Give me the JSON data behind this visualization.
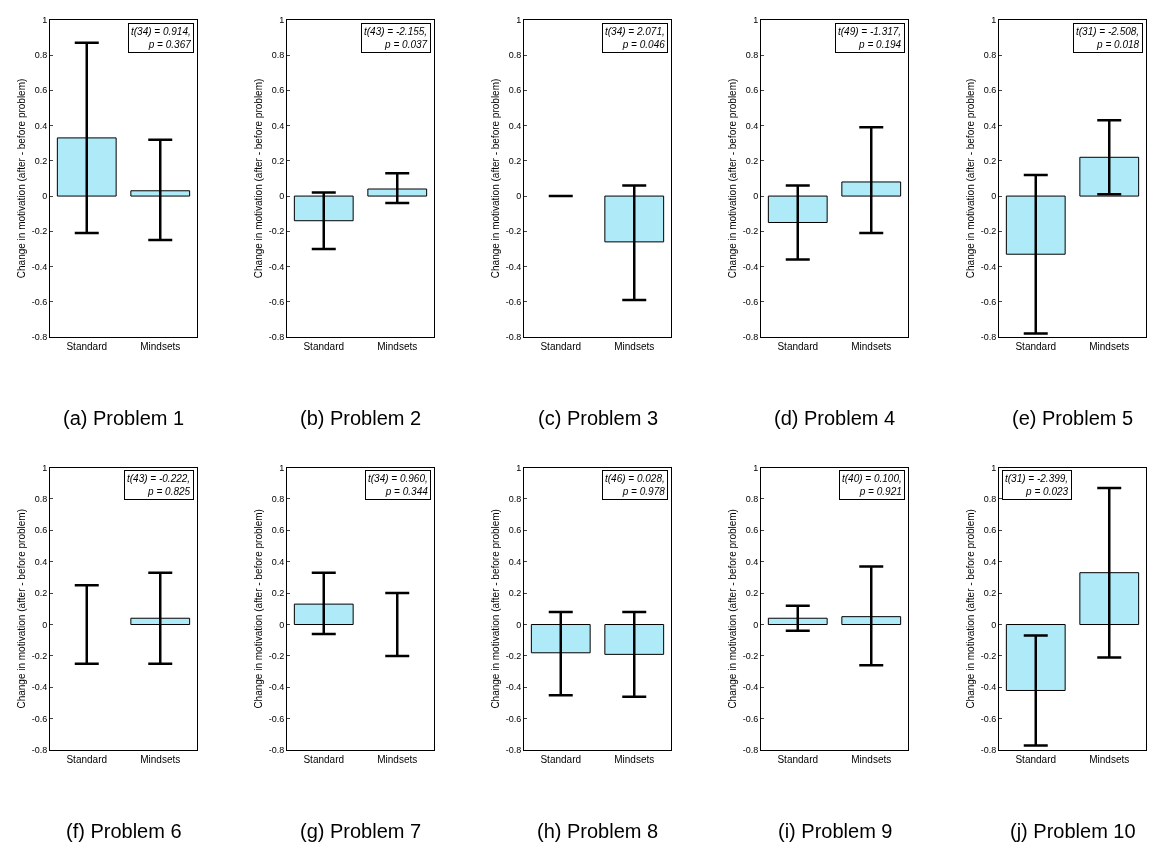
{
  "chart_data": [
    {
      "type": "bar",
      "title": "(a) Problem 1",
      "ylabel": "Change in motivation (after - before problem)",
      "categories": [
        "Standard",
        "Mindsets"
      ],
      "values": [
        0.33,
        0.03
      ],
      "errors": [
        [
          -0.21,
          0.87
        ],
        [
          -0.25,
          0.32
        ]
      ],
      "color": "#aeeaf8",
      "ylim": [
        -0.8,
        1
      ],
      "yticks": [
        -0.8,
        -0.6,
        -0.4,
        -0.2,
        0,
        0.2,
        0.4,
        0.6,
        0.8,
        1
      ],
      "annotations": [
        "t(34) = 0.914,\np = 0.367"
      ]
    },
    {
      "type": "bar",
      "title": "(b) Problem 2",
      "ylabel": "Change in motivation (after - before problem)",
      "categories": [
        "Standard",
        "Mindsets"
      ],
      "values": [
        -0.14,
        0.04
      ],
      "errors": [
        [
          -0.3,
          0.02
        ],
        [
          -0.04,
          0.13
        ]
      ],
      "color": "#aeeaf8",
      "ylim": [
        -0.8,
        1
      ],
      "yticks": [
        -0.8,
        -0.6,
        -0.4,
        -0.2,
        0,
        0.2,
        0.4,
        0.6,
        0.8,
        1
      ],
      "annotations": [
        "t(43) = -2.155,\np = 0.037"
      ]
    },
    {
      "type": "bar",
      "title": "(c) Problem 3",
      "ylabel": "Change in motivation (after - before problem)",
      "categories": [
        "Standard",
        "Mindsets"
      ],
      "values": [
        0,
        -0.26
      ],
      "errors": [
        null,
        [
          -0.59,
          0.06
        ]
      ],
      "color": "#aeeaf8",
      "ylim": [
        -0.8,
        1
      ],
      "yticks": [
        -0.8,
        -0.6,
        -0.4,
        -0.2,
        0,
        0.2,
        0.4,
        0.6,
        0.8,
        1
      ],
      "annotations": [
        "t(34) = 2.071,\np = 0.046"
      ]
    },
    {
      "type": "bar",
      "title": "(d) Problem 4",
      "ylabel": "Change in motivation (after - before problem)",
      "categories": [
        "Standard",
        "Mindsets"
      ],
      "values": [
        -0.15,
        0.08
      ],
      "errors": [
        [
          -0.36,
          0.06
        ],
        [
          -0.21,
          0.39
        ]
      ],
      "color": "#aeeaf8",
      "ylim": [
        -0.8,
        1
      ],
      "yticks": [
        -0.8,
        -0.6,
        -0.4,
        -0.2,
        0,
        0.2,
        0.4,
        0.6,
        0.8,
        1
      ],
      "annotations": [
        "t(49) = -1.317,\np = 0.194"
      ]
    },
    {
      "type": "bar",
      "title": "(e) Problem 5",
      "ylabel": "Change in motivation (after - before problem)",
      "categories": [
        "Standard",
        "Mindsets"
      ],
      "values": [
        -0.33,
        0.22
      ],
      "errors": [
        [
          -0.78,
          0.12
        ],
        [
          0.01,
          0.43
        ]
      ],
      "color": "#aeeaf8",
      "ylim": [
        -0.8,
        1
      ],
      "yticks": [
        -0.8,
        -0.6,
        -0.4,
        -0.2,
        0,
        0.2,
        0.4,
        0.6,
        0.8,
        1
      ],
      "annotations": [
        "t(31) = -2.508,\np = 0.018"
      ]
    },
    {
      "type": "bar",
      "title": "(f) Problem 6",
      "ylabel": "Change in motivation (after - before problem)",
      "categories": [
        "Standard",
        "Mindsets"
      ],
      "values": [
        0,
        0.04
      ],
      "errors": [
        [
          -0.25,
          0.25
        ],
        [
          -0.25,
          0.33
        ]
      ],
      "color": "#aeeaf8",
      "ylim": [
        -0.8,
        1
      ],
      "yticks": [
        -0.8,
        -0.6,
        -0.4,
        -0.2,
        0,
        0.2,
        0.4,
        0.6,
        0.8,
        1
      ],
      "annotations": [
        "t(43) = -0.222,\np = 0.825"
      ]
    },
    {
      "type": "bar",
      "title": "(g) Problem 7",
      "ylabel": "Change in motivation (after - before problem)",
      "categories": [
        "Standard",
        "Mindsets"
      ],
      "values": [
        0.13,
        0
      ],
      "errors": [
        [
          -0.06,
          0.33
        ],
        [
          -0.2,
          0.2
        ]
      ],
      "color": "#aeeaf8",
      "ylim": [
        -0.8,
        1
      ],
      "yticks": [
        -0.8,
        -0.6,
        -0.4,
        -0.2,
        0,
        0.2,
        0.4,
        0.6,
        0.8,
        1
      ],
      "annotations": [
        "t(34) = 0.960,\np = 0.344"
      ]
    },
    {
      "type": "bar",
      "title": "(h) Problem 8",
      "ylabel": "Change in motivation (after - before problem)",
      "categories": [
        "Standard",
        "Mindsets"
      ],
      "values": [
        -0.18,
        -0.19
      ],
      "errors": [
        [
          -0.45,
          0.08
        ],
        [
          -0.46,
          0.08
        ]
      ],
      "color": "#aeeaf8",
      "ylim": [
        -0.8,
        1
      ],
      "yticks": [
        -0.8,
        -0.6,
        -0.4,
        -0.2,
        0,
        0.2,
        0.4,
        0.6,
        0.8,
        1
      ],
      "annotations": [
        "t(46) = 0.028,\np = 0.978"
      ]
    },
    {
      "type": "bar",
      "title": "(i) Problem 9",
      "ylabel": "Change in motivation (after - before problem)",
      "categories": [
        "Standard",
        "Mindsets"
      ],
      "values": [
        0.04,
        0.05
      ],
      "errors": [
        [
          -0.04,
          0.12
        ],
        [
          -0.26,
          0.37
        ]
      ],
      "color": "#aeeaf8",
      "ylim": [
        -0.8,
        1
      ],
      "yticks": [
        -0.8,
        -0.6,
        -0.4,
        -0.2,
        0,
        0.2,
        0.4,
        0.6,
        0.8,
        1
      ],
      "annotations": [
        "t(40) = 0.100,\np = 0.921"
      ]
    },
    {
      "type": "bar",
      "title": "(j) Problem 10",
      "ylabel": "Change in motivation (after - before problem)",
      "categories": [
        "Standard",
        "Mindsets"
      ],
      "values": [
        -0.42,
        0.33
      ],
      "errors": [
        [
          -0.77,
          -0.07
        ],
        [
          -0.21,
          0.87
        ]
      ],
      "color": "#aeeaf8",
      "ylim": [
        -0.8,
        1
      ],
      "yticks": [
        -0.8,
        -0.6,
        -0.4,
        -0.2,
        0,
        0.2,
        0.4,
        0.6,
        0.8,
        1
      ],
      "annotations": [
        "t(31) = -2.399,\np = 0.023"
      ]
    }
  ]
}
